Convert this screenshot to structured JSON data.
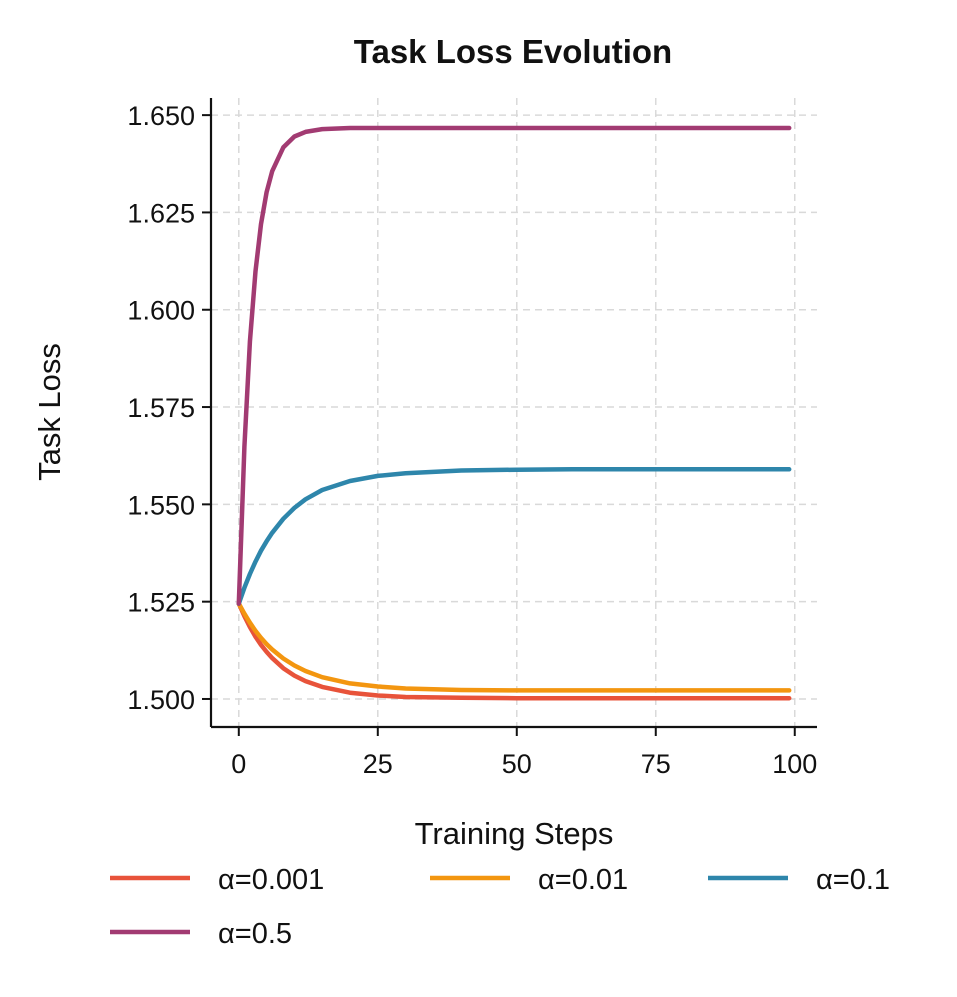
{
  "chart_data": {
    "type": "line",
    "title": "Task Loss Evolution",
    "xlabel": "Training Steps",
    "ylabel": "Task Loss",
    "xlim": [
      -5,
      104
    ],
    "ylim": [
      1.4928,
      1.6544
    ],
    "xticks": [
      0,
      25,
      50,
      75,
      100
    ],
    "xtick_labels": [
      "0",
      "25",
      "50",
      "75",
      "100"
    ],
    "yticks": [
      1.5,
      1.525,
      1.55,
      1.575,
      1.6,
      1.625,
      1.65
    ],
    "ytick_labels": [
      "1.500",
      "1.525",
      "1.550",
      "1.575",
      "1.600",
      "1.625",
      "1.650"
    ],
    "grid": true,
    "legend_placement": "bottom",
    "x": [
      0,
      1,
      2,
      3,
      4,
      5,
      6,
      8,
      10,
      12,
      15,
      20,
      25,
      30,
      40,
      50,
      60,
      70,
      80,
      90,
      99
    ],
    "series": [
      {
        "name": "α=0.001",
        "color": "#e8533a",
        "values": [
          1.5245,
          1.5213,
          1.5185,
          1.516,
          1.5139,
          1.5121,
          1.5105,
          1.5079,
          1.506,
          1.5046,
          1.5031,
          1.5016,
          1.5009,
          1.5005,
          1.5003,
          1.5002,
          1.5002,
          1.5002,
          1.5002,
          1.5002,
          1.5002
        ]
      },
      {
        "name": "α=0.01",
        "color": "#f39610",
        "values": [
          1.5245,
          1.5219,
          1.5196,
          1.5175,
          1.5157,
          1.5141,
          1.5127,
          1.5104,
          1.5086,
          1.5072,
          1.5056,
          1.504,
          1.5032,
          1.5027,
          1.5023,
          1.5022,
          1.5022,
          1.5022,
          1.5022,
          1.5022,
          1.5022
        ]
      },
      {
        "name": "α=0.1",
        "color": "#2e86ab",
        "values": [
          1.5245,
          1.5286,
          1.5321,
          1.5353,
          1.5381,
          1.5405,
          1.5427,
          1.5463,
          1.5491,
          1.5513,
          1.5537,
          1.556,
          1.5573,
          1.558,
          1.5587,
          1.5589,
          1.559,
          1.559,
          1.559,
          1.559,
          1.559
        ]
      },
      {
        "name": "α=0.5",
        "color": "#a23b72",
        "values": [
          1.5245,
          1.5648,
          1.5918,
          1.6099,
          1.622,
          1.6302,
          1.6356,
          1.6417,
          1.6445,
          1.6457,
          1.6464,
          1.6467,
          1.6467,
          1.6467,
          1.6467,
          1.6467,
          1.6467,
          1.6467,
          1.6467,
          1.6467,
          1.6467
        ]
      }
    ]
  }
}
